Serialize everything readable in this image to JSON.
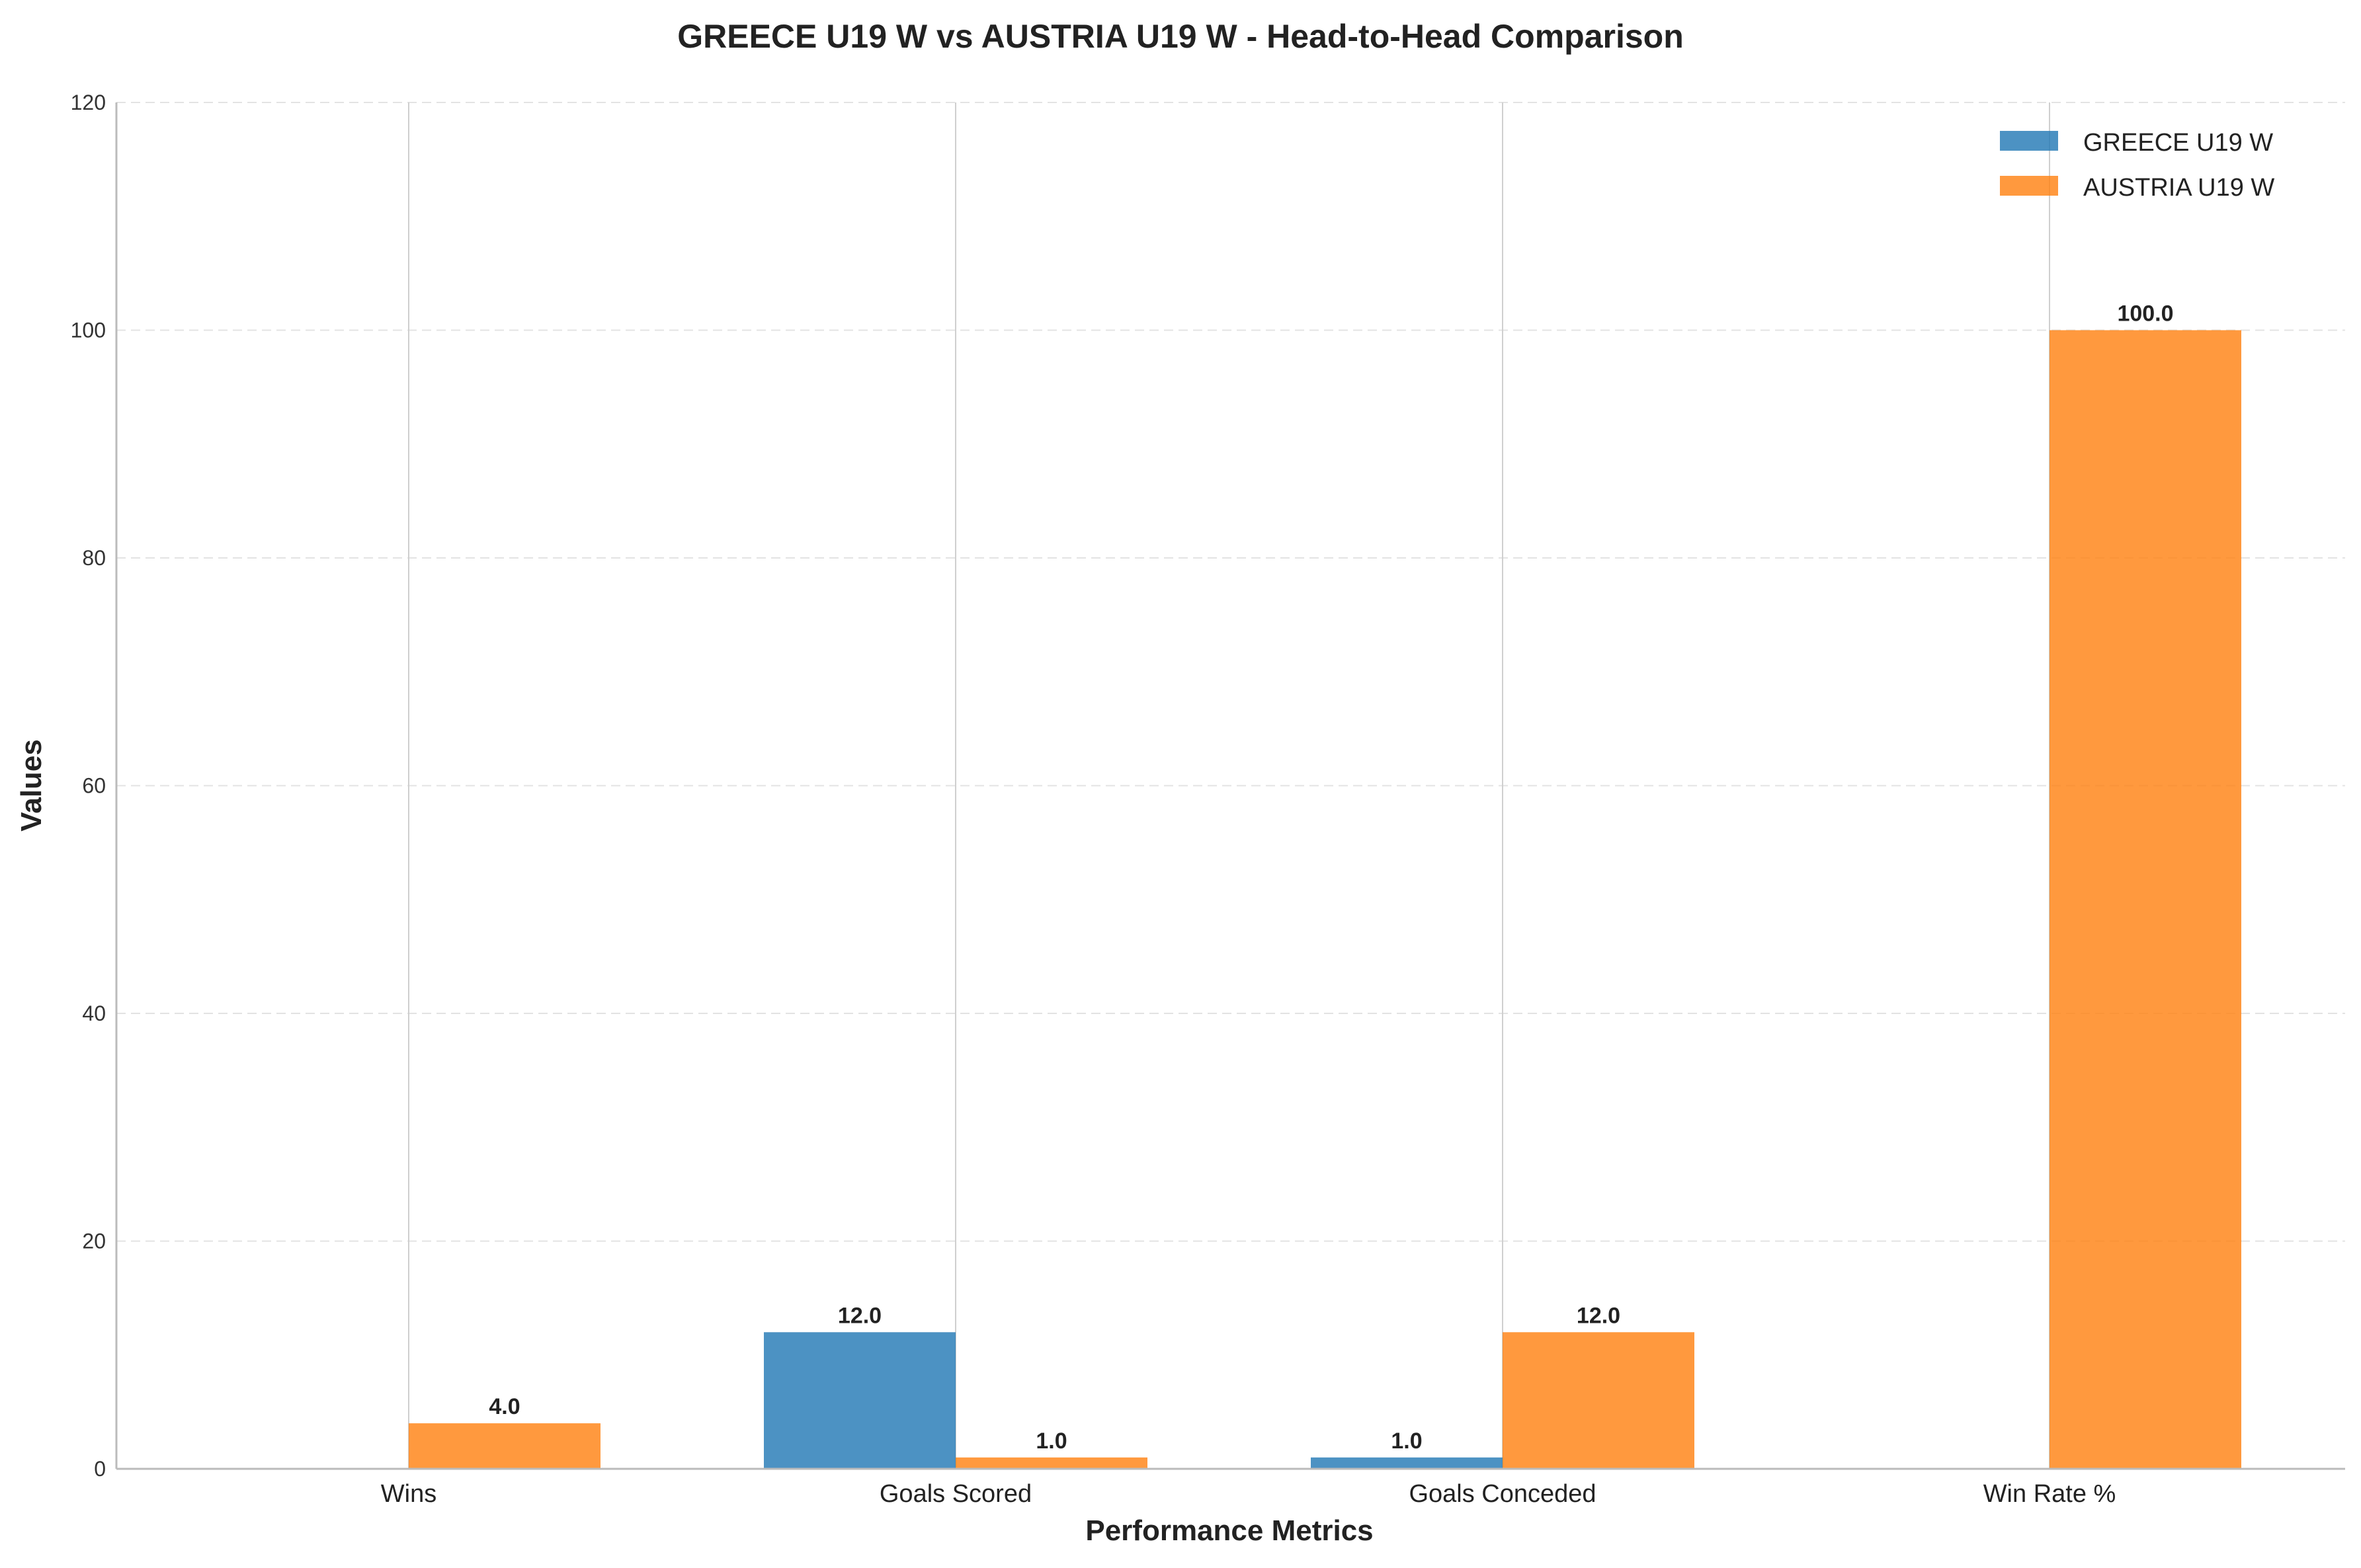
{
  "chart_data": {
    "type": "bar",
    "title": "GREECE U19 W vs AUSTRIA U19 W - Head-to-Head Comparison",
    "xlabel": "Performance Metrics",
    "ylabel": "Values",
    "categories": [
      "Wins",
      "Goals Scored",
      "Goals Conceded",
      "Win Rate %"
    ],
    "series": [
      {
        "name": "GREECE U19 W",
        "values": [
          0,
          12.0,
          1.0,
          0
        ],
        "color": "#1f77b4"
      },
      {
        "name": "AUSTRIA U19 W",
        "values": [
          4.0,
          1.0,
          12.0,
          100.0
        ],
        "color": "#ff7f0e"
      }
    ],
    "data_labels": [
      [
        null,
        "12.0",
        "1.0",
        null
      ],
      [
        "4.0",
        "1.0",
        "12.0",
        "100.0"
      ]
    ],
    "ylim": [
      0,
      120
    ],
    "yticks": [
      0,
      20,
      40,
      60,
      80,
      100,
      120
    ],
    "grid": "horizontal dashed",
    "legend_position": "top-right"
  }
}
